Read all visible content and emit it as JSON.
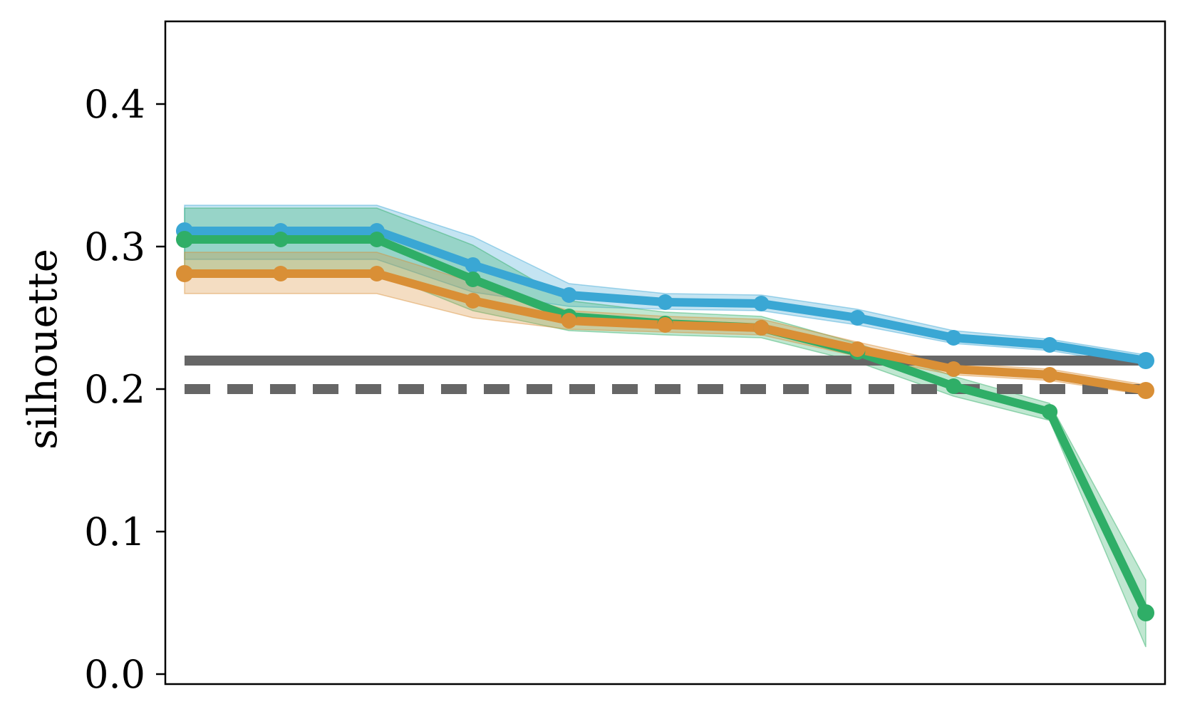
{
  "chart_data": {
    "type": "line",
    "title": "",
    "xlabel": "",
    "ylabel": "silhouette",
    "ylim": [
      -0.007,
      0.458
    ],
    "xlim": [
      -0.2,
      10.2
    ],
    "y_ticks": [
      0.0,
      0.1,
      0.2,
      0.3,
      0.4
    ],
    "y_tick_labels": [
      "0.0",
      "0.1",
      "0.2",
      "0.3",
      "0.4"
    ],
    "x_ticks_visible": false,
    "grid": false,
    "legend": "none",
    "x": [
      0,
      1,
      2,
      3,
      4,
      5,
      6,
      7,
      8,
      9,
      10
    ],
    "series": [
      {
        "color": "#3aa7d4",
        "values": [
          0.311,
          0.311,
          0.311,
          0.287,
          0.266,
          0.261,
          0.26,
          0.25,
          0.236,
          0.231,
          0.22
        ],
        "band_lower": [
          0.291,
          0.291,
          0.291,
          0.268,
          0.258,
          0.256,
          0.255,
          0.245,
          0.232,
          0.227,
          0.216
        ],
        "band_upper": [
          0.329,
          0.329,
          0.329,
          0.307,
          0.274,
          0.267,
          0.266,
          0.256,
          0.241,
          0.235,
          0.224
        ]
      },
      {
        "color": "#2fae67",
        "values": [
          0.305,
          0.305,
          0.305,
          0.277,
          0.251,
          0.246,
          0.243,
          0.226,
          0.202,
          0.184,
          0.043
        ],
        "band_lower": [
          0.282,
          0.282,
          0.282,
          0.255,
          0.241,
          0.238,
          0.236,
          0.219,
          0.195,
          0.178,
          0.019
        ],
        "band_upper": [
          0.327,
          0.327,
          0.327,
          0.301,
          0.262,
          0.254,
          0.251,
          0.232,
          0.209,
          0.19,
          0.066
        ]
      },
      {
        "color": "#d98f36",
        "values": [
          0.281,
          0.281,
          0.281,
          0.262,
          0.248,
          0.245,
          0.243,
          0.228,
          0.214,
          0.21,
          0.199
        ],
        "band_lower": [
          0.267,
          0.267,
          0.267,
          0.25,
          0.242,
          0.24,
          0.238,
          0.223,
          0.21,
          0.206,
          0.196
        ],
        "band_upper": [
          0.296,
          0.296,
          0.296,
          0.275,
          0.255,
          0.251,
          0.249,
          0.233,
          0.218,
          0.214,
          0.203
        ]
      }
    ],
    "reference_lines": [
      {
        "y": 0.22,
        "style": "solid",
        "color": "#666666"
      },
      {
        "y": 0.2,
        "style": "dashed",
        "color": "#666666"
      }
    ]
  }
}
